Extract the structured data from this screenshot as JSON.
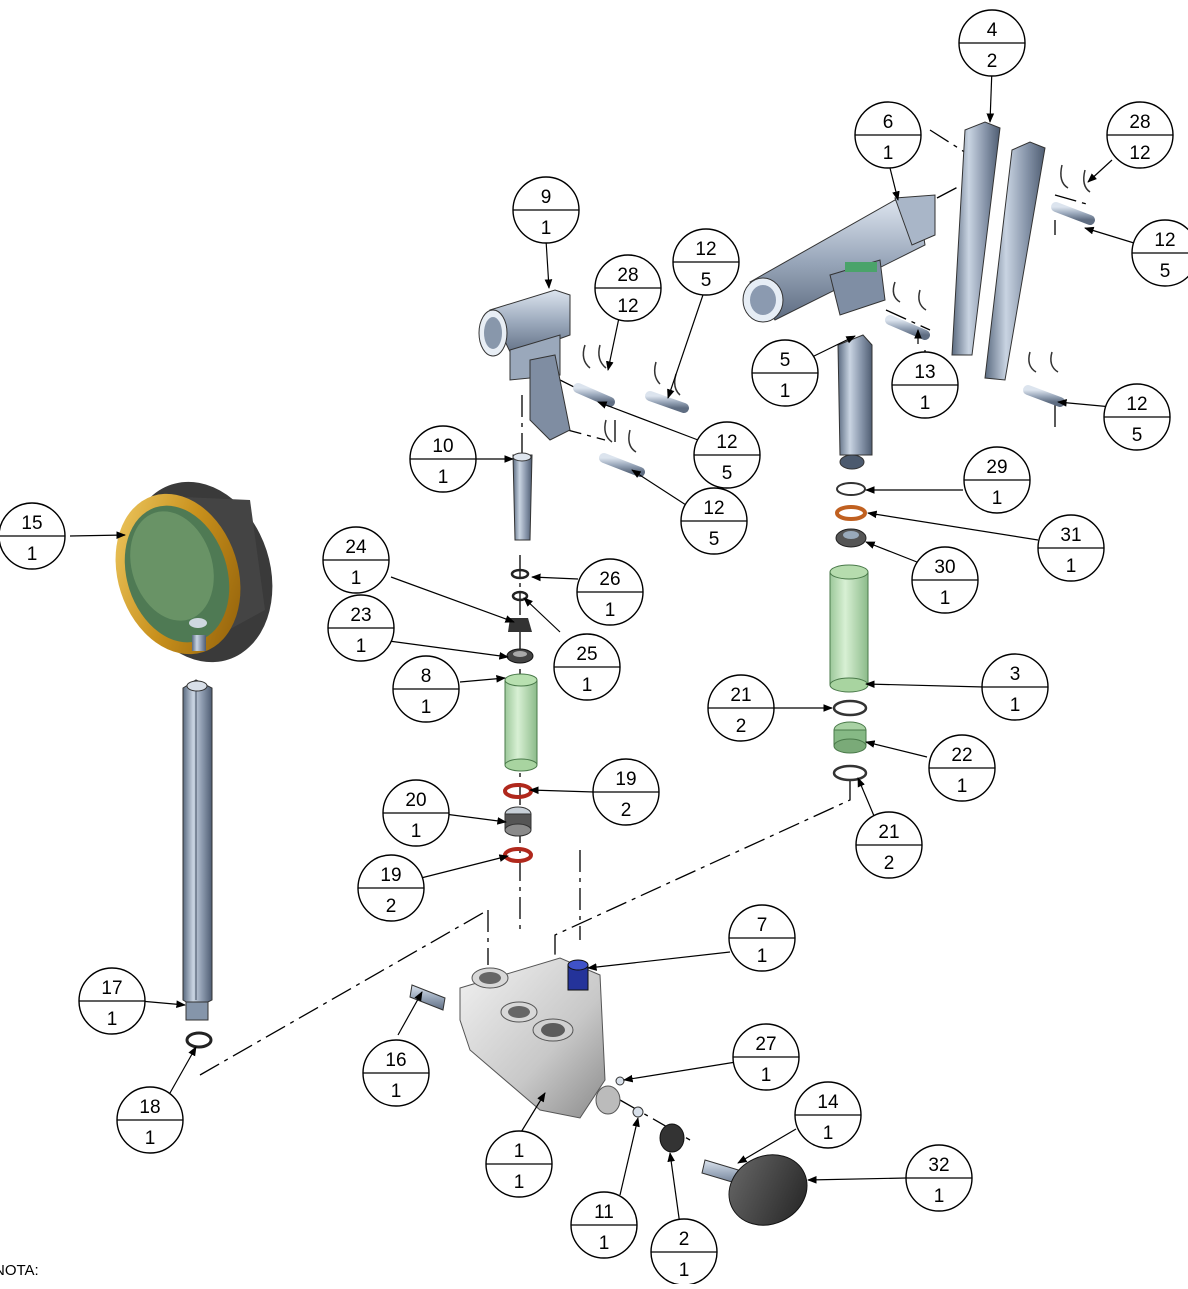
{
  "note_label": "NOTA:",
  "balloons": [
    {
      "item": "4",
      "qty": "2"
    },
    {
      "item": "6",
      "qty": "1"
    },
    {
      "item": "28",
      "qty": "12"
    },
    {
      "item": "12",
      "qty": "5"
    },
    {
      "item": "9",
      "qty": "1"
    },
    {
      "item": "28",
      "qty": "12"
    },
    {
      "item": "12",
      "qty": "5"
    },
    {
      "item": "5",
      "qty": "1"
    },
    {
      "item": "13",
      "qty": "1"
    },
    {
      "item": "12",
      "qty": "5"
    },
    {
      "item": "12",
      "qty": "5"
    },
    {
      "item": "10",
      "qty": "1"
    },
    {
      "item": "12",
      "qty": "5"
    },
    {
      "item": "29",
      "qty": "1"
    },
    {
      "item": "15",
      "qty": "1"
    },
    {
      "item": "31",
      "qty": "1"
    },
    {
      "item": "24",
      "qty": "1"
    },
    {
      "item": "26",
      "qty": "1"
    },
    {
      "item": "30",
      "qty": "1"
    },
    {
      "item": "23",
      "qty": "1"
    },
    {
      "item": "25",
      "qty": "1"
    },
    {
      "item": "8",
      "qty": "1"
    },
    {
      "item": "3",
      "qty": "1"
    },
    {
      "item": "21",
      "qty": "2"
    },
    {
      "item": "22",
      "qty": "1"
    },
    {
      "item": "20",
      "qty": "1"
    },
    {
      "item": "19",
      "qty": "2"
    },
    {
      "item": "21",
      "qty": "2"
    },
    {
      "item": "19",
      "qty": "2"
    },
    {
      "item": "7",
      "qty": "1"
    },
    {
      "item": "17",
      "qty": "1"
    },
    {
      "item": "27",
      "qty": "1"
    },
    {
      "item": "16",
      "qty": "1"
    },
    {
      "item": "14",
      "qty": "1"
    },
    {
      "item": "18",
      "qty": "1"
    },
    {
      "item": "1",
      "qty": "1"
    },
    {
      "item": "32",
      "qty": "1"
    },
    {
      "item": "11",
      "qty": "1"
    },
    {
      "item": "2",
      "qty": "1"
    }
  ]
}
